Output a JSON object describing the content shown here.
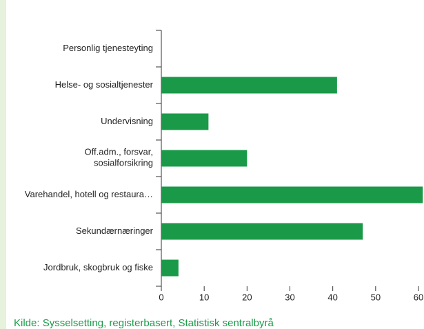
{
  "chart_data": {
    "type": "bar",
    "orientation": "horizontal",
    "categories": [
      "Personlig tjenesteyting",
      "Helse- og sosialtjenester",
      "Undervisning",
      "Off.adm., forsvar,\nsosialforsikring",
      "Varehandel, hotell og restaura…",
      "Sekundærnæringer",
      "Jordbruk, skogbruk og fiske"
    ],
    "values": [
      0,
      41,
      11,
      20,
      61,
      47,
      4
    ],
    "color": "#1a9a48",
    "xlim": [
      0,
      60
    ],
    "xticks": [
      0,
      10,
      20,
      30,
      40,
      50,
      60
    ],
    "source": "Kilde: Sysselsetting, registerbasert, Statistisk sentralbyrå"
  }
}
